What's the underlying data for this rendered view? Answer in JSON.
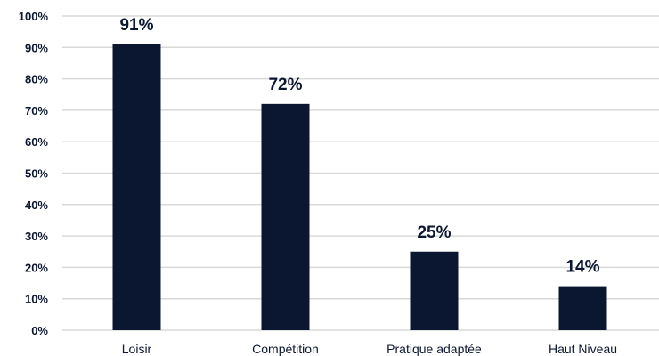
{
  "chart_data": {
    "type": "bar",
    "title": "",
    "xlabel": "",
    "ylabel": "",
    "categories": [
      "Loisir",
      "Compétition",
      "Pratique adaptée",
      "Haut Niveau"
    ],
    "values": [
      91,
      72,
      25,
      14
    ],
    "data_labels": [
      "91%",
      "72%",
      "25%",
      "14%"
    ],
    "ylim": [
      0,
      100
    ],
    "yticks": [
      0,
      10,
      20,
      30,
      40,
      50,
      60,
      70,
      80,
      90,
      100
    ],
    "ytick_labels": [
      "0%",
      "10%",
      "20%",
      "30%",
      "40%",
      "50%",
      "60%",
      "70%",
      "80%",
      "90%",
      "100%"
    ],
    "grid": true,
    "legend": "none",
    "colors": {
      "bar": "#0b1630",
      "grid": "#d9d9d9",
      "text": "#0b1630"
    }
  }
}
